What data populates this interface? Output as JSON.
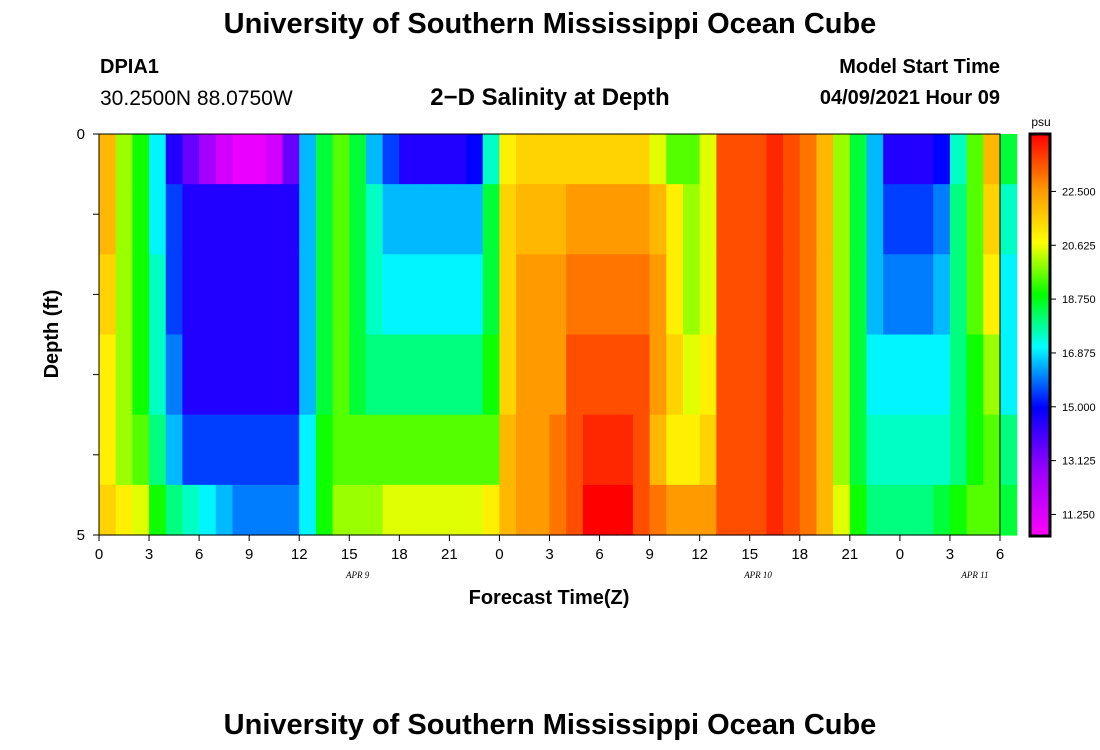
{
  "header": {
    "title": "University of Southern Mississippi Ocean Cube",
    "station": "DPIA1",
    "coords": "30.2500N  88.0750W",
    "subtitle": "2−D Salinity at Depth",
    "start_label": "Model Start Time",
    "start_value": "04/09/2021 Hour 09"
  },
  "footer": {
    "title": "University of Southern Mississippi Ocean Cube"
  },
  "chart_data": {
    "type": "heatmap",
    "title": "2−D Salinity at Depth",
    "xlabel": "Forecast Time(Z)",
    "ylabel": "Depth (ft)",
    "x_tick_labels": [
      "0",
      "3",
      "6",
      "9",
      "12",
      "15",
      "18",
      "21",
      "0",
      "3",
      "6",
      "9",
      "12",
      "15",
      "18",
      "21",
      "0",
      "3",
      "6"
    ],
    "date_labels": [
      "APR 9",
      "APR 10",
      "APR 11"
    ],
    "x_hours": [
      0,
      1,
      2,
      3,
      4,
      5,
      6,
      7,
      8,
      9,
      10,
      11,
      12,
      13,
      14,
      15,
      16,
      17,
      18,
      19,
      20,
      21,
      22,
      23,
      24,
      25,
      26,
      27,
      28,
      29,
      30,
      31,
      32,
      33,
      34,
      35,
      36,
      37,
      38,
      39,
      40,
      41,
      42,
      43,
      44,
      45,
      46,
      47,
      48,
      49,
      50,
      51,
      52,
      53,
      54
    ],
    "depth_ticks": [
      "0",
      "5"
    ],
    "ylim": [
      0,
      5
    ],
    "colorbar": {
      "unit": "psu",
      "tick_labels": [
        "22.500",
        "20.625",
        "18.750",
        "16.875",
        "15.000",
        "13.125",
        "11.250"
      ],
      "range": [
        10.5,
        24.5
      ]
    },
    "depth_levels_ft": [
      0.25,
      1,
      2,
      3,
      4,
      4.75
    ],
    "values": [
      [
        22,
        20,
        19,
        17,
        14.5,
        13.5,
        12.5,
        11.5,
        11.0,
        11.0,
        11.5,
        13.5,
        16.5,
        18.5,
        19.5,
        18.5,
        16.5,
        15.5,
        14.5,
        14.5,
        14.5,
        14.5,
        15.0,
        17.5,
        21,
        21.5,
        21.5,
        21.5,
        21.5,
        21.5,
        21.5,
        21.5,
        21.5,
        20.5,
        19.5,
        19.5,
        20.5,
        23.5,
        23.5,
        23.5,
        24,
        23.5,
        23,
        22,
        20,
        18.5,
        16.5,
        14.5,
        14.5,
        14.5,
        15,
        17.5,
        19.5,
        22,
        18.5
      ],
      [
        22,
        20,
        19,
        17,
        15.5,
        14.5,
        14.5,
        14.5,
        14.5,
        14.5,
        14.5,
        14.5,
        16.5,
        18.5,
        19.5,
        18.5,
        17.5,
        16.5,
        16.5,
        16.5,
        16.5,
        16.5,
        16.5,
        18.5,
        21.5,
        22,
        22,
        22,
        22.5,
        22.5,
        22.5,
        22.5,
        22.5,
        22,
        21,
        20,
        20.5,
        23.5,
        23.5,
        23.5,
        24,
        23.5,
        23,
        22,
        20,
        18.5,
        16.5,
        15.5,
        15.5,
        15.5,
        16,
        18,
        19.5,
        21.5,
        17.5
      ],
      [
        21.5,
        20,
        19,
        17.5,
        15.5,
        14.5,
        14.5,
        14.5,
        14.5,
        14.5,
        14.5,
        14.5,
        16.5,
        18.5,
        19.5,
        18.5,
        17.5,
        17,
        17,
        17,
        17,
        17,
        17,
        18.5,
        21.5,
        22.5,
        22.5,
        22.5,
        23,
        23,
        23,
        23,
        23,
        22.5,
        21,
        20,
        20.5,
        23.5,
        23.5,
        23.5,
        24,
        23.5,
        23,
        22,
        20,
        18.5,
        16.5,
        16,
        16,
        16,
        16.5,
        18,
        19.5,
        21,
        17
      ],
      [
        21,
        20,
        19,
        17.5,
        16,
        14.5,
        14.5,
        14.5,
        14.5,
        14.5,
        14.5,
        14.5,
        16.5,
        18.5,
        19.5,
        18.5,
        18,
        18,
        18,
        18,
        18,
        18,
        18,
        19,
        21.5,
        22.5,
        22.5,
        22.5,
        23.5,
        23.5,
        23.5,
        23.5,
        23.5,
        22.5,
        21.5,
        20.5,
        21,
        23.5,
        23.5,
        23.5,
        24,
        23.5,
        23,
        22,
        20,
        18.5,
        17,
        17,
        17,
        17,
        17,
        18,
        19,
        20,
        17
      ],
      [
        21,
        20,
        19.5,
        18,
        16.5,
        15.5,
        15.5,
        15.5,
        15.5,
        15.5,
        15.5,
        15.5,
        17,
        19,
        19.5,
        19.5,
        19.5,
        19.5,
        19.5,
        19.5,
        19.5,
        19.5,
        19.5,
        19.5,
        22,
        22.5,
        22.5,
        23,
        23.5,
        24,
        24,
        24,
        23.5,
        22,
        21,
        21,
        21.5,
        23.5,
        23.5,
        23.5,
        24,
        23.5,
        23,
        22,
        20,
        18.5,
        17.5,
        17.5,
        17.5,
        17.5,
        17.5,
        18,
        19,
        19.5,
        18
      ],
      [
        21.5,
        21,
        20.5,
        19,
        18,
        17.5,
        17,
        16.5,
        16,
        16,
        16,
        16,
        17,
        19,
        20,
        20,
        20,
        20.5,
        20.5,
        20.5,
        20.5,
        20.5,
        20.5,
        21,
        22,
        22.5,
        22.5,
        23,
        23.5,
        24.5,
        24.5,
        24.5,
        23.5,
        23,
        22.5,
        22.5,
        22.5,
        23.5,
        23.5,
        23.5,
        24,
        23.5,
        23,
        22,
        20.5,
        19,
        18,
        18,
        18,
        18,
        18.5,
        19,
        19.5,
        19.5,
        18.5
      ]
    ]
  }
}
